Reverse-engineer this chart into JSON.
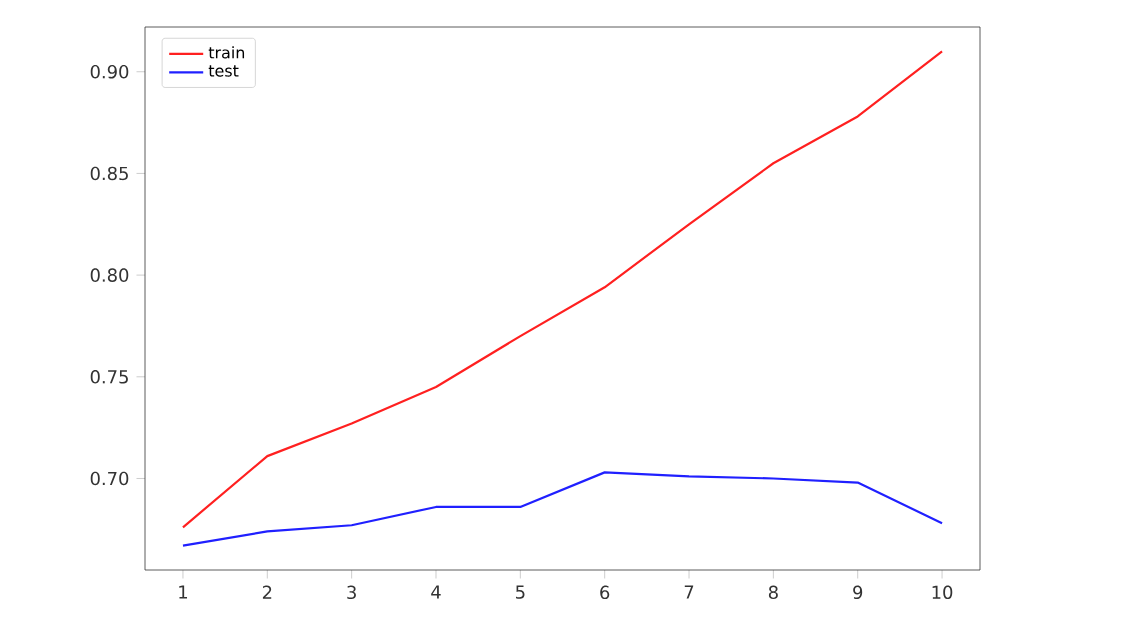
{
  "chart_data": {
    "type": "line",
    "x": [
      1,
      2,
      3,
      4,
      5,
      6,
      7,
      8,
      9,
      10
    ],
    "series": [
      {
        "name": "train",
        "color": "#ff2020",
        "values": [
          0.676,
          0.711,
          0.727,
          0.745,
          0.77,
          0.794,
          0.825,
          0.855,
          0.878,
          0.91
        ]
      },
      {
        "name": "test",
        "color": "#2020ff",
        "values": [
          0.667,
          0.674,
          0.677,
          0.686,
          0.686,
          0.703,
          0.701,
          0.7,
          0.698,
          0.678
        ]
      }
    ],
    "xlim": [
      0.55,
      10.45
    ],
    "ylim": [
      0.655,
      0.922
    ],
    "xticks": [
      1,
      2,
      3,
      4,
      5,
      6,
      7,
      8,
      9,
      10
    ],
    "yticks": [
      {
        "value": 0.7,
        "label": "0.70"
      },
      {
        "value": 0.75,
        "label": "0.75"
      },
      {
        "value": 0.8,
        "label": "0.80"
      },
      {
        "value": 0.85,
        "label": "0.85"
      },
      {
        "value": 0.9,
        "label": "0.90"
      }
    ],
    "legend": "top left",
    "grid": false,
    "marker": "none",
    "line_style": "solid"
  }
}
